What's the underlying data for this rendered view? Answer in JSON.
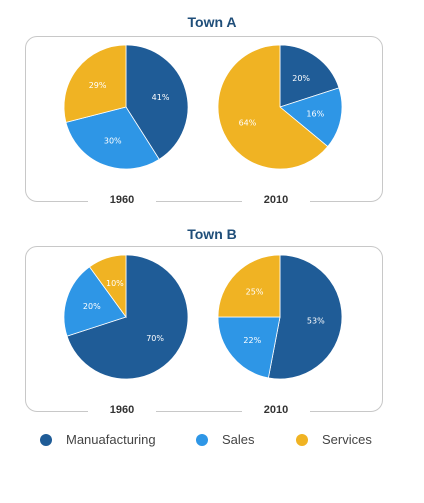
{
  "colors": {
    "manufacturing": "#1f5c97",
    "sales": "#2e96e6",
    "services": "#f0b323"
  },
  "legend": [
    {
      "label": "Manuafacturing",
      "color": "#1f5c97"
    },
    {
      "label": "Sales",
      "color": "#2e96e6"
    },
    {
      "label": "Services",
      "color": "#f0b323"
    }
  ],
  "chart_data": [
    {
      "type": "pie",
      "title": "Town A",
      "charts": [
        {
          "year": "1960",
          "slices": [
            {
              "category": "Manufacturing",
              "value": 41,
              "label": "41%"
            },
            {
              "category": "Sales",
              "value": 30,
              "label": "30%"
            },
            {
              "category": "Services",
              "value": 29,
              "label": "29%"
            }
          ]
        },
        {
          "year": "2010",
          "slices": [
            {
              "category": "Manufacturing",
              "value": 20,
              "label": "20%"
            },
            {
              "category": "Sales",
              "value": 16,
              "label": "16%"
            },
            {
              "category": "Services",
              "value": 64,
              "label": "64%"
            }
          ]
        }
      ]
    },
    {
      "type": "pie",
      "title": "Town B",
      "charts": [
        {
          "year": "1960",
          "slices": [
            {
              "category": "Manufacturing",
              "value": 70,
              "label": "70%"
            },
            {
              "category": "Sales",
              "value": 20,
              "label": "20%"
            },
            {
              "category": "Services",
              "value": 10,
              "label": "10%"
            }
          ]
        },
        {
          "year": "2010",
          "slices": [
            {
              "category": "Manufacturing",
              "value": 53,
              "label": "53%"
            },
            {
              "category": "Sales",
              "value": 22,
              "label": "22%"
            },
            {
              "category": "Services",
              "value": 25,
              "label": "25%"
            }
          ]
        }
      ]
    }
  ]
}
